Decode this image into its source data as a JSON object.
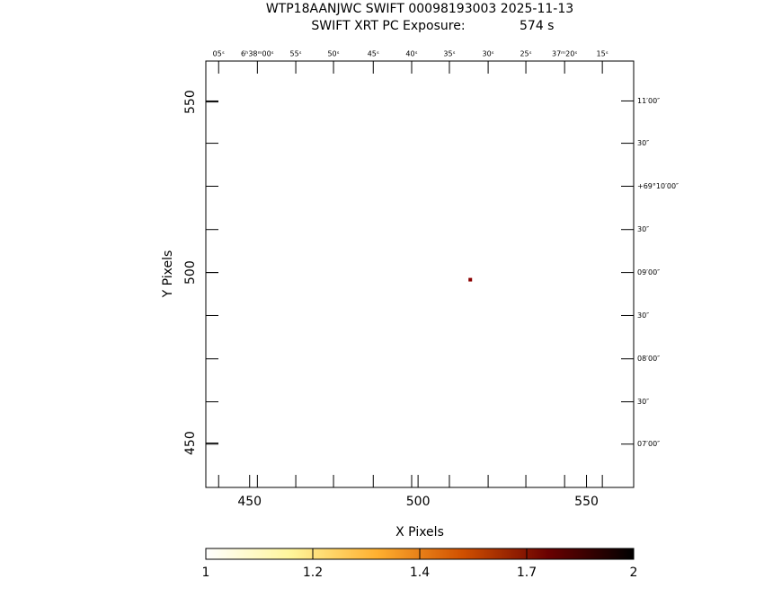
{
  "chart_data": {
    "type": "scatter",
    "title": "WTP18AANJWC SWIFT 00098193003 2025-11-13",
    "subtitle": "SWIFT XRT PC Exposure:",
    "exposure": "574 s",
    "xlabel": "X Pixels",
    "ylabel": "Y Pixels",
    "x": [
      515.5
    ],
    "series": [
      {
        "color": "#8b0000",
        "values": [
          497.9
        ]
      }
    ],
    "xlim": [
      437,
      564
    ],
    "ylim": [
      437,
      562
    ],
    "xticks": [
      450,
      500,
      550
    ],
    "yticks": [
      450,
      500,
      550
    ],
    "x2ticks": [
      {
        "value": 440.8,
        "label": "05ˢ"
      },
      {
        "value": 452.3,
        "label": "6ʰ38ᵐ00ˢ"
      },
      {
        "value": 463.7,
        "label": "55ˢ"
      },
      {
        "value": 474.9,
        "label": "50ˢ"
      },
      {
        "value": 486.7,
        "label": "45ˢ"
      },
      {
        "value": 498.1,
        "label": "40ˢ"
      },
      {
        "value": 509.3,
        "label": "35ˢ"
      },
      {
        "value": 520.8,
        "label": "30ˢ"
      },
      {
        "value": 532,
        "label": "25ˢ"
      },
      {
        "value": 543.5,
        "label": "37ᵐ20ˢ"
      },
      {
        "value": 554.7,
        "label": "15ˢ"
      }
    ],
    "y2ticks": [
      {
        "value": 550.3,
        "label": "11′00″"
      },
      {
        "value": 537.9,
        "label": "30″"
      },
      {
        "value": 525.3,
        "label": "+69°10′00″"
      },
      {
        "value": 512.6,
        "label": "30″"
      },
      {
        "value": 500,
        "label": "09′00″"
      },
      {
        "value": 487.4,
        "label": "30″"
      },
      {
        "value": 474.7,
        "label": "08′00″"
      },
      {
        "value": 462.1,
        "label": "30″"
      },
      {
        "value": 449.7,
        "label": "07′00″"
      }
    ],
    "colorbar": {
      "ticks": [
        1,
        1.2,
        1.4,
        1.7,
        2
      ],
      "colors": [
        "#ffffff",
        "#fff59a",
        "#ffb030",
        "#d05000",
        "#6a0000",
        "#000000"
      ]
    }
  }
}
